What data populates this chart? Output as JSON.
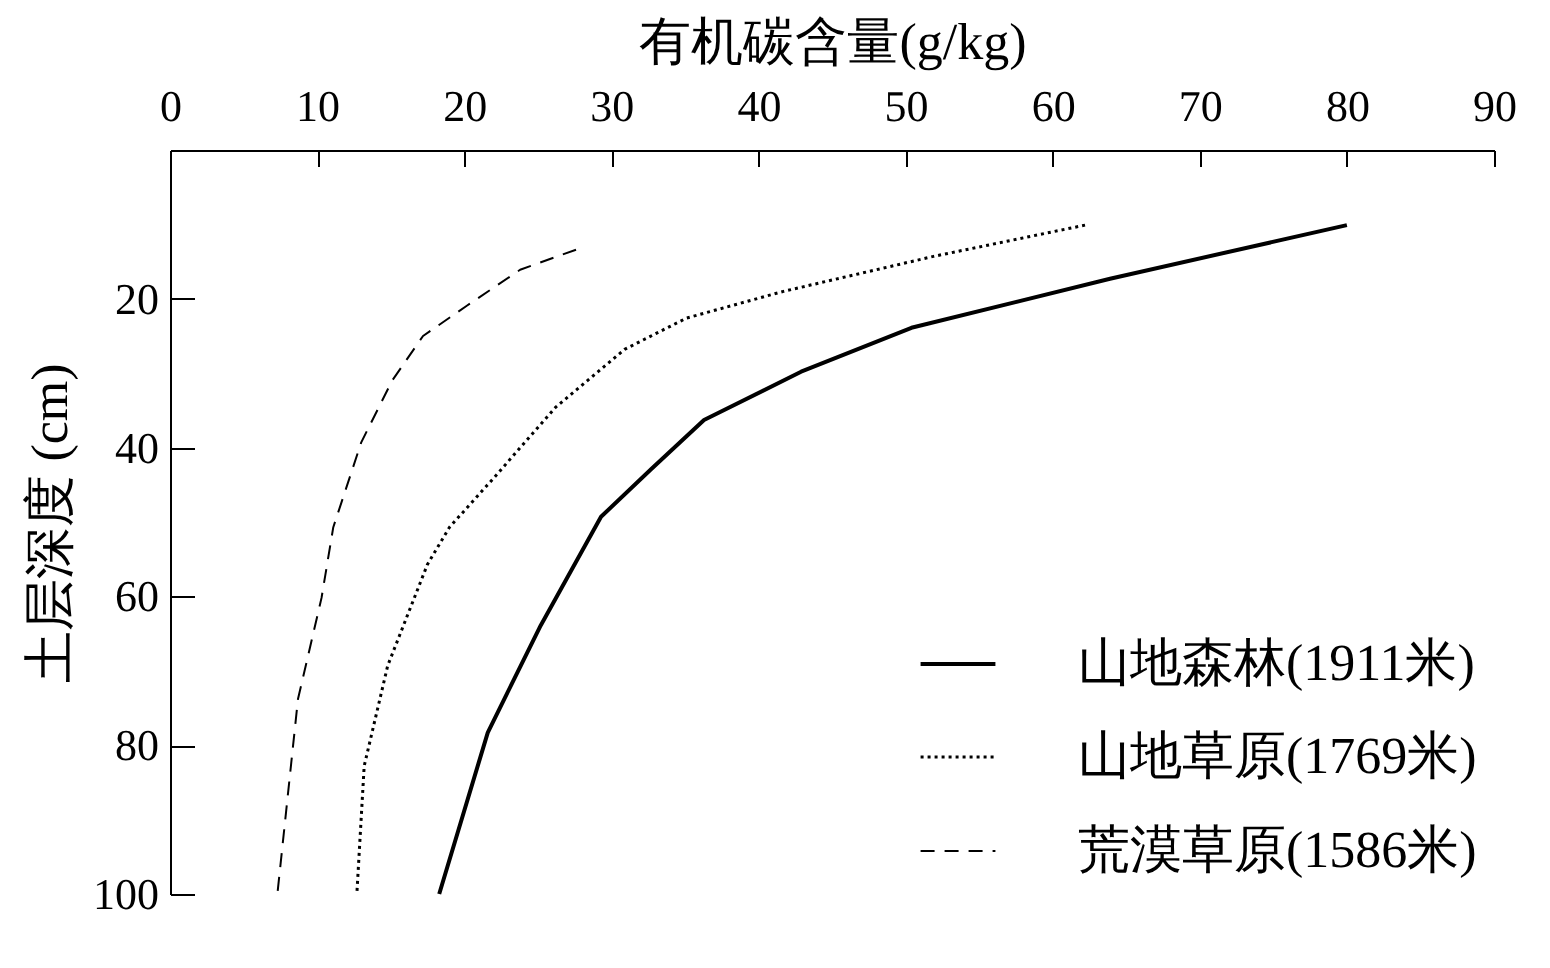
{
  "chart_data": {
    "type": "line",
    "xlabel": "有机碳含量(g/kg)",
    "ylabel": "土层深度 (cm)",
    "xlim": [
      0,
      90
    ],
    "xticks": [
      0,
      10,
      20,
      30,
      40,
      50,
      60,
      70,
      80,
      90
    ],
    "ylim": [
      100,
      0
    ],
    "yticks": [
      20,
      40,
      60,
      80,
      100
    ],
    "grid": false,
    "legend": "bottom right",
    "marker": "none",
    "series": [
      {
        "name": "山地森林(1911米)",
        "color": "#000000",
        "line_style": "solid",
        "x": [
          80.0,
          63.9,
          50.4,
          42.9,
          36.3,
          32.7,
          29.3,
          25.2,
          21.6,
          18.3
        ],
        "values": [
          10.1,
          17.3,
          23.9,
          29.8,
          36.3,
          42.9,
          49.3,
          63.9,
          78.3,
          100
        ]
      },
      {
        "name": "山地草原(1769米)",
        "color": "#000000",
        "line_style": "dotted",
        "x": [
          62.2,
          51.9,
          41.7,
          35.1,
          30.9,
          26.2,
          22.0,
          19.0,
          17.5,
          14.8,
          13.2,
          12.7
        ],
        "values": [
          10.1,
          14.3,
          19.0,
          22.6,
          26.8,
          34.6,
          44.1,
          50.7,
          55.7,
          69.3,
          82.8,
          100
        ]
      },
      {
        "name": "荒漠草原(1586米)",
        "color": "#000000",
        "line_style": "dashed",
        "x": [
          27.6,
          23.8,
          20.2,
          17.2,
          15.1,
          13.0,
          11.1,
          10.3,
          8.7,
          7.3
        ],
        "values": [
          13.4,
          16.1,
          20.9,
          25.0,
          31.0,
          39.3,
          50.7,
          60.2,
          73.8,
          100
        ]
      }
    ]
  }
}
